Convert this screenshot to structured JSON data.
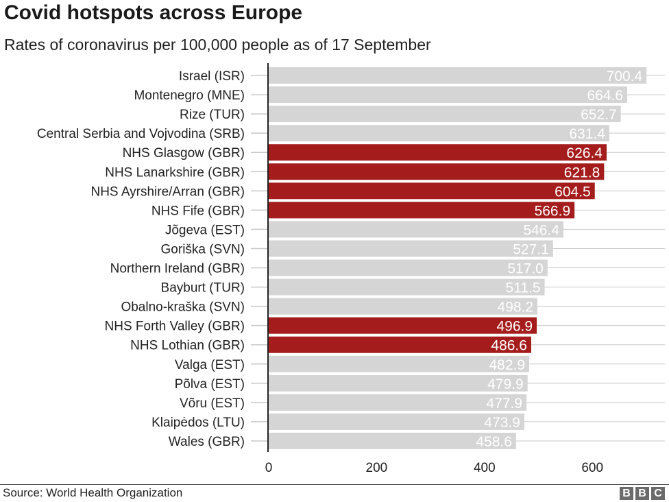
{
  "header": {
    "title": "Covid hotspots across Europe",
    "subtitle": "Rates of coronavirus per 100,000 people as of 17 September"
  },
  "footer": {
    "source": "Source: World Health Organization",
    "logo_letters": [
      "B",
      "B",
      "C"
    ]
  },
  "colors": {
    "highlight": "#a51c1c",
    "default": "#d5d5d5",
    "axis": "#222222",
    "gridline": "#c8c8c8"
  },
  "chart_data": {
    "type": "bar",
    "orientation": "horizontal",
    "title": "Covid hotspots across Europe",
    "subtitle": "Rates of coronavirus per 100,000 people as of 17 September",
    "xlabel": "",
    "ylabel": "",
    "xlim": [
      0,
      700
    ],
    "xticks": [
      0,
      200,
      400,
      600
    ],
    "value_labels": true,
    "grid": true,
    "categories": [
      "Israel (ISR)",
      "Montenegro (MNE)",
      "Rize (TUR)",
      "Central Serbia and Vojvodina (SRB)",
      "NHS Glasgow (GBR)",
      "NHS Lanarkshire (GBR)",
      "NHS Ayrshire/Arran (GBR)",
      "NHS Fife (GBR)",
      "Jõgeva (EST)",
      "Goriška (SVN)",
      "Northern Ireland (GBR)",
      "Bayburt (TUR)",
      "Obalno-kraška (SVN)",
      "NHS Forth Valley (GBR)",
      "NHS Lothian (GBR)",
      "Valga (EST)",
      "Põlva (EST)",
      "Võru (EST)",
      "Klaipėdos (LTU)",
      "Wales (GBR)"
    ],
    "values": [
      700.4,
      664.6,
      652.7,
      631.4,
      626.4,
      621.8,
      604.5,
      566.9,
      546.4,
      527.1,
      517.0,
      511.5,
      498.2,
      496.9,
      486.6,
      482.9,
      479.9,
      477.9,
      473.9,
      458.6
    ],
    "value_labels_text": [
      "700.4",
      "664.6",
      "652.7",
      "631.4",
      "626.4",
      "621.8",
      "604.5",
      "566.9",
      "546.4",
      "527.1",
      "517.0",
      "511.5",
      "498.2",
      "496.9",
      "486.6",
      "482.9",
      "479.9",
      "477.9",
      "473.9",
      "458.6"
    ],
    "highlighted": [
      false,
      false,
      false,
      false,
      true,
      true,
      true,
      true,
      false,
      false,
      false,
      false,
      false,
      true,
      true,
      false,
      false,
      false,
      false,
      false
    ]
  }
}
